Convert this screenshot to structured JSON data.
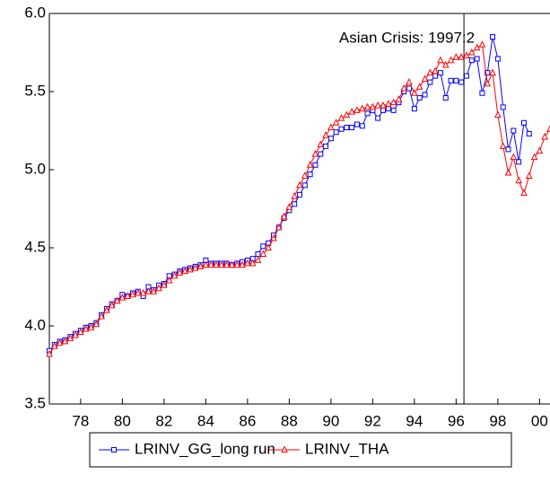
{
  "chart_data": {
    "type": "line",
    "annotation": {
      "text": "Asian Crisis: 1997:2",
      "x": 96.375
    },
    "x": [
      76.5,
      76.75,
      77,
      77.25,
      77.5,
      77.75,
      78,
      78.25,
      78.5,
      78.75,
      79,
      79.25,
      79.5,
      79.75,
      80,
      80.25,
      80.5,
      80.75,
      81,
      81.25,
      81.5,
      81.75,
      82,
      82.25,
      82.5,
      82.75,
      83,
      83.25,
      83.5,
      83.75,
      84,
      84.25,
      84.5,
      84.75,
      85,
      85.25,
      85.5,
      85.75,
      86,
      86.25,
      86.5,
      86.75,
      87,
      87.25,
      87.5,
      87.75,
      88,
      88.25,
      88.5,
      88.75,
      89,
      89.25,
      89.5,
      89.75,
      90,
      90.25,
      90.5,
      90.75,
      91,
      91.25,
      91.5,
      91.75,
      92,
      92.25,
      92.5,
      92.75,
      93,
      93.25,
      93.5,
      93.75,
      94,
      94.25,
      94.5,
      94.75,
      95,
      95.25,
      95.5,
      95.75,
      96,
      96.25,
      96.5,
      96.75,
      97,
      97.25,
      97.5,
      97.75,
      98,
      98.25,
      98.5,
      98.75,
      99,
      99.25,
      99.5,
      99.75,
      100,
      100.25,
      100.5
    ],
    "series": [
      {
        "name": "LRINV_GG_long run",
        "color": "#0000ff",
        "marker": "square",
        "values": [
          3.84,
          3.88,
          3.9,
          3.91,
          3.93,
          3.95,
          3.97,
          3.99,
          4.0,
          4.02,
          4.07,
          4.11,
          4.14,
          4.16,
          4.2,
          4.19,
          4.21,
          4.22,
          4.19,
          4.25,
          4.23,
          4.26,
          4.27,
          4.32,
          4.33,
          4.35,
          4.36,
          4.37,
          4.38,
          4.39,
          4.42,
          4.4,
          4.4,
          4.4,
          4.4,
          4.39,
          4.4,
          4.41,
          4.42,
          4.43,
          4.46,
          4.51,
          4.53,
          4.58,
          4.63,
          4.69,
          4.74,
          4.78,
          4.84,
          4.9,
          4.97,
          5.03,
          5.1,
          5.15,
          5.2,
          5.24,
          5.26,
          5.27,
          5.27,
          5.29,
          5.28,
          5.36,
          5.38,
          5.33,
          5.38,
          5.39,
          5.38,
          5.43,
          5.5,
          5.52,
          5.39,
          5.46,
          5.48,
          5.56,
          5.6,
          5.62,
          5.46,
          5.57,
          5.57,
          5.56,
          5.6,
          5.7,
          5.71,
          5.49,
          5.62,
          5.85,
          5.71,
          5.4,
          5.13,
          5.25,
          5.05,
          5.3,
          5.23,
          null,
          null,
          null,
          null
        ]
      },
      {
        "name": "LRINV_THA",
        "color": "#ff0000",
        "marker": "triangle",
        "values": [
          3.82,
          3.87,
          3.89,
          3.9,
          3.92,
          3.94,
          3.96,
          3.98,
          3.99,
          4.01,
          4.06,
          4.1,
          4.13,
          4.16,
          4.18,
          4.19,
          4.2,
          4.21,
          4.21,
          4.22,
          4.22,
          4.24,
          4.26,
          4.29,
          4.32,
          4.34,
          4.35,
          4.36,
          4.37,
          4.38,
          4.39,
          4.39,
          4.39,
          4.39,
          4.39,
          4.39,
          4.39,
          4.39,
          4.4,
          4.4,
          4.42,
          4.46,
          4.5,
          4.56,
          4.63,
          4.7,
          4.76,
          4.83,
          4.9,
          4.96,
          5.03,
          5.1,
          5.16,
          5.22,
          5.27,
          5.3,
          5.33,
          5.35,
          5.37,
          5.38,
          5.39,
          5.4,
          5.4,
          5.41,
          5.41,
          5.42,
          5.43,
          5.45,
          5.52,
          5.56,
          5.49,
          5.53,
          5.58,
          5.62,
          5.63,
          5.7,
          5.67,
          5.7,
          5.72,
          5.72,
          5.73,
          5.75,
          5.78,
          5.8,
          5.55,
          5.62,
          5.35,
          5.15,
          4.98,
          5.08,
          4.93,
          4.85,
          4.96,
          5.08,
          5.12,
          5.21,
          5.26
        ]
      }
    ],
    "xlim": [
      76.5,
      100.5
    ],
    "xticks": [
      78,
      80,
      82,
      84,
      86,
      88,
      90,
      92,
      94,
      96,
      98,
      {
        "value": 100,
        "label": "00"
      }
    ],
    "ylim": [
      3.5,
      6.0
    ],
    "yticks": [
      {
        "value": 3.5,
        "label": "3.5"
      },
      {
        "value": 4,
        "label": "4.0"
      },
      {
        "value": 4.5,
        "label": "4.5"
      },
      {
        "value": 5,
        "label": "5.0"
      },
      {
        "value": 5.5,
        "label": "5.5"
      },
      {
        "value": 6,
        "label": "6.0"
      }
    ]
  }
}
